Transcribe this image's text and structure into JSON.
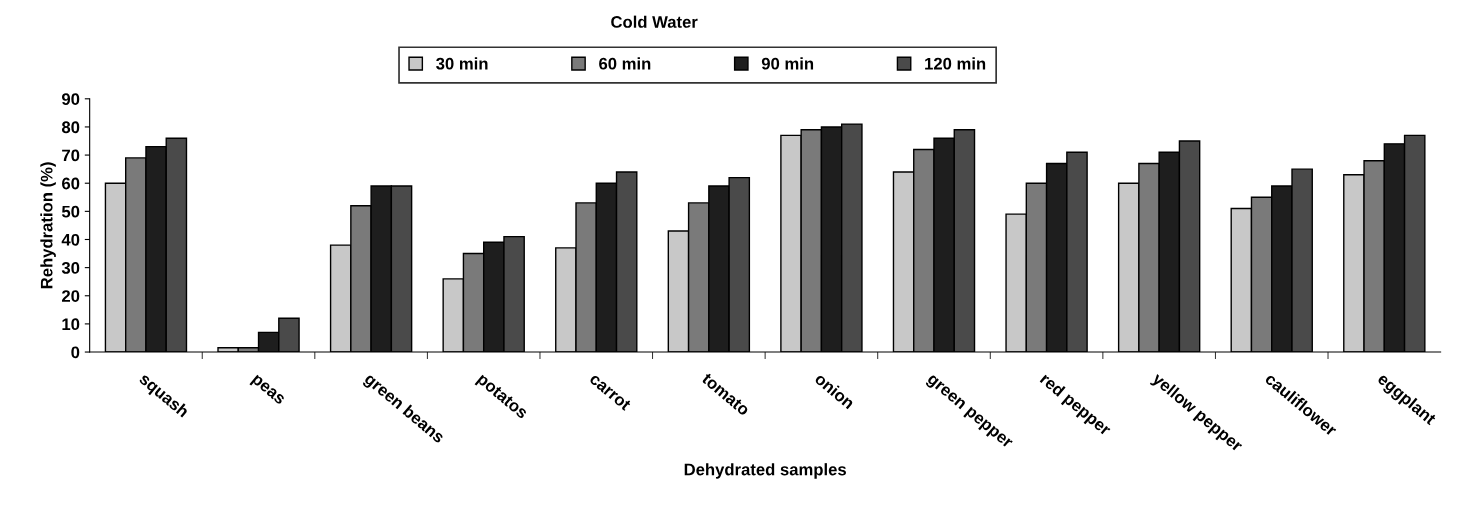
{
  "chart_data": {
    "type": "bar",
    "title": "Cold Water",
    "xlabel": "Dehydrated samples",
    "ylabel": "Rehydration (%)",
    "categories": [
      "squash",
      "peas",
      "green beans",
      "potatos",
      "carrot",
      "tomato",
      "onion",
      "green pepper",
      "red pepper",
      "yellow pepper",
      "cauliflower",
      "eggplant"
    ],
    "series": [
      {
        "name": "30 min",
        "color": "#c8c8c8",
        "values": [
          60,
          1.5,
          38,
          26,
          37,
          43,
          77,
          64,
          49,
          60,
          51,
          63
        ]
      },
      {
        "name": "60 min",
        "color": "#7a7a7a",
        "values": [
          69,
          1.5,
          52,
          35,
          53,
          53,
          79,
          72,
          60,
          67,
          55,
          68
        ]
      },
      {
        "name": "90 min",
        "color": "#1e1e1e",
        "values": [
          73,
          7,
          59,
          39,
          60,
          59,
          80,
          76,
          67,
          71,
          59,
          74
        ]
      },
      {
        "name": "120 min",
        "color": "#4a4a4a",
        "values": [
          76,
          12,
          59,
          41,
          64,
          62,
          81,
          79,
          71,
          75,
          65,
          77
        ]
      }
    ],
    "ylim": [
      0,
      90
    ],
    "yticks": [
      0,
      10,
      20,
      30,
      40,
      50,
      60,
      70,
      80,
      90
    ],
    "grid": false,
    "legend": "top"
  }
}
